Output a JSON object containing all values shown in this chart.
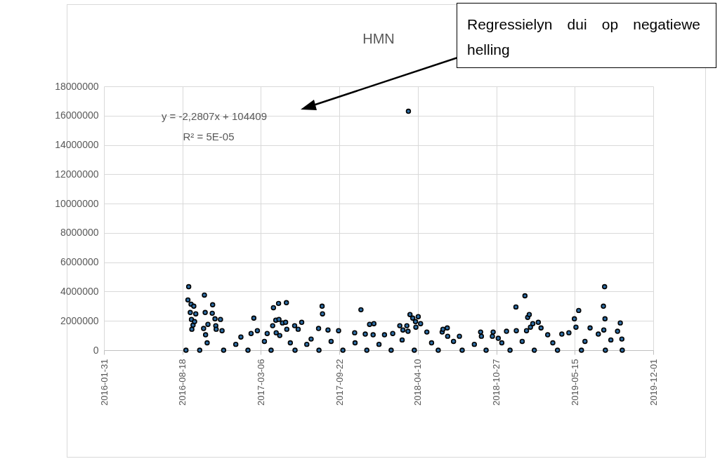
{
  "chart_data": {
    "type": "scatter",
    "title": "HMN",
    "annotations": [
      "y = -2,2807x + 104409",
      "R² = 5E-05",
      "Regressielyn dui op negatiewe helling"
    ],
    "xlim": [
      "2016-01-31",
      "2019-12-01"
    ],
    "xticks": [
      "2016-01-31",
      "2016-08-18",
      "2017-03-06",
      "2017-09-22",
      "2018-04-10",
      "2018-10-27",
      "2019-05-15",
      "2019-12-01"
    ],
    "ylim": [
      0,
      18000000
    ],
    "yticks": [
      0,
      2000000,
      4000000,
      6000000,
      8000000,
      10000000,
      12000000,
      14000000,
      16000000,
      18000000
    ],
    "grid": true,
    "marker": "circle",
    "series": [
      {
        "color": "#2e6da4",
        "x": [
          "2016-08-27",
          "2016-09-01",
          "2016-09-03",
          "2016-09-07",
          "2016-09-09",
          "2016-09-10",
          "2016-09-11",
          "2016-09-14",
          "2016-09-16",
          "2016-09-18",
          "2016-09-21",
          "2016-10-01",
          "2016-10-11",
          "2016-10-13",
          "2016-10-15",
          "2016-10-16",
          "2016-10-20",
          "2016-10-22",
          "2016-11-02",
          "2016-11-03",
          "2016-11-09",
          "2016-11-11",
          "2016-11-12",
          "2016-11-23",
          "2016-11-27",
          "2016-12-01",
          "2017-01-01",
          "2017-01-14",
          "2017-02-01",
          "2017-02-09",
          "2017-02-16",
          "2017-02-25",
          "2017-03-15",
          "2017-03-22",
          "2017-04-01",
          "2017-04-05",
          "2017-04-07",
          "2017-04-13",
          "2017-04-14",
          "2017-04-20",
          "2017-04-21",
          "2017-04-23",
          "2017-04-30",
          "2017-05-08",
          "2017-05-10",
          "2017-05-11",
          "2017-05-20",
          "2017-05-31",
          "2017-06-01",
          "2017-06-09",
          "2017-06-18",
          "2017-07-01",
          "2017-07-12",
          "2017-07-31",
          "2017-08-01",
          "2017-08-09",
          "2017-08-10",
          "2017-08-24",
          "2017-09-01",
          "2017-09-20",
          "2017-10-01",
          "2017-10-31",
          "2017-11-01",
          "2017-11-16",
          "2017-11-27",
          "2017-12-01",
          "2017-12-08",
          "2017-12-17",
          "2017-12-19",
          "2018-01-01",
          "2018-01-15",
          "2018-02-01",
          "2018-02-05",
          "2018-02-23",
          "2018-03-01",
          "2018-03-03",
          "2018-03-13",
          "2018-03-16",
          "2018-03-17",
          "2018-03-21",
          "2018-03-28",
          "2018-04-01",
          "2018-04-04",
          "2018-04-05",
          "2018-04-11",
          "2018-04-17",
          "2018-05-03",
          "2018-05-15",
          "2018-06-01",
          "2018-06-11",
          "2018-06-13",
          "2018-06-24",
          "2018-06-25",
          "2018-07-10",
          "2018-07-25",
          "2018-08-01",
          "2018-09-01",
          "2018-09-17",
          "2018-09-19",
          "2018-10-01",
          "2018-10-17",
          "2018-10-19",
          "2018-11-01",
          "2018-11-10",
          "2018-11-22",
          "2018-12-01",
          "2018-12-16",
          "2018-12-17",
          "2019-01-01",
          "2019-01-08",
          "2019-01-12",
          "2019-01-15",
          "2019-01-19",
          "2019-01-22",
          "2019-01-28",
          "2019-02-01",
          "2019-02-11",
          "2019-02-18",
          "2019-03-07",
          "2019-03-20",
          "2019-04-01",
          "2019-04-12",
          "2019-04-30",
          "2019-05-14",
          "2019-05-18",
          "2019-05-25",
          "2019-06-01",
          "2019-06-10",
          "2019-06-23",
          "2019-07-14",
          "2019-07-27",
          "2019-07-28",
          "2019-07-30",
          "2019-07-31",
          "2019-08-01",
          "2019-08-15",
          "2019-09-01",
          "2019-09-08",
          "2019-09-12",
          "2019-09-13"
        ],
        "values": [
          0,
          3430000,
          4330000,
          2570000,
          3140000,
          2100000,
          1430000,
          1710000,
          3000000,
          1950000,
          2480000,
          0,
          1480000,
          3760000,
          2570000,
          1050000,
          500000,
          1760000,
          2520000,
          3100000,
          2140000,
          1670000,
          1430000,
          2100000,
          1330000,
          0,
          400000,
          900000,
          0,
          1140000,
          2190000,
          1330000,
          600000,
          1140000,
          0,
          1670000,
          2900000,
          2050000,
          1190000,
          3190000,
          2100000,
          1000000,
          1860000,
          1900000,
          3240000,
          1430000,
          500000,
          1670000,
          0,
          1430000,
          1900000,
          400000,
          760000,
          1480000,
          0,
          3000000,
          2480000,
          1380000,
          600000,
          1330000,
          0,
          1190000,
          500000,
          2760000,
          1100000,
          0,
          1760000,
          1050000,
          1810000,
          400000,
          1050000,
          0,
          1140000,
          1670000,
          700000,
          1380000,
          1670000,
          1290000,
          16300000,
          2430000,
          2190000,
          0,
          1950000,
          1570000,
          2290000,
          1810000,
          1240000,
          500000,
          0,
          1240000,
          1430000,
          1520000,
          950000,
          600000,
          950000,
          0,
          400000,
          1240000,
          950000,
          0,
          950000,
          1240000,
          810000,
          500000,
          1290000,
          0,
          2950000,
          1330000,
          600000,
          3710000,
          1330000,
          2240000,
          2430000,
          1570000,
          1810000,
          0,
          1900000,
          1520000,
          1050000,
          500000,
          0,
          1100000,
          1190000,
          2140000,
          1570000,
          2710000,
          0,
          600000,
          1520000,
          1100000,
          3000000,
          1380000,
          4330000,
          2140000,
          0,
          700000,
          1290000,
          1860000,
          760000,
          0
        ]
      }
    ]
  }
}
